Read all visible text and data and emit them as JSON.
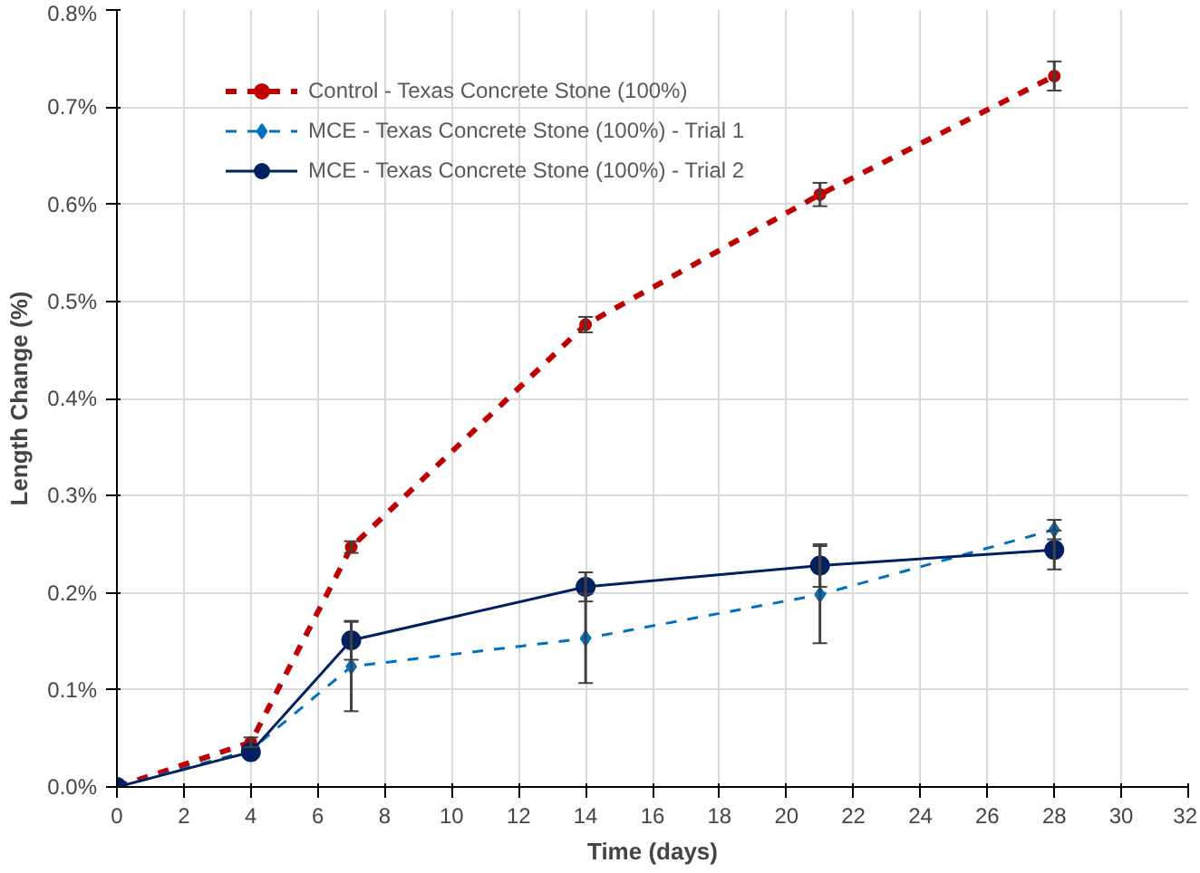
{
  "chart_data": {
    "type": "line",
    "xlabel": "Time (days)",
    "ylabel": "Length Change (%)",
    "x": [
      0,
      4,
      7,
      14,
      21,
      28
    ],
    "series": [
      {
        "name": "Control - Texas Concrete Stone (100%)",
        "color": "#c00000",
        "values": [
          0,
          0.046,
          0.247,
          0.476,
          0.61,
          0.732
        ],
        "errors": [
          null,
          0.005,
          0.006,
          0.008,
          0.012,
          0.015
        ],
        "line_style": "dashed",
        "marker": "circle"
      },
      {
        "name": "MCE - Texas Concrete Stone (100%) - Trial 1",
        "color": "#0070c0",
        "values": [
          0,
          0.038,
          0.124,
          0.153,
          0.198,
          0.265
        ],
        "errors": [
          null,
          null,
          0.046,
          0.046,
          0.05,
          0.01
        ],
        "line_style": "dashed",
        "marker": "diamond"
      },
      {
        "name": "MCE - Texas Concrete Stone (100%) - Trial 2",
        "color": "#002060",
        "values": [
          0,
          0.036,
          0.151,
          0.206,
          0.228,
          0.244
        ],
        "errors": [
          null,
          null,
          0.02,
          0.015,
          0.022,
          0.02
        ],
        "line_style": "solid",
        "marker": "circle"
      }
    ],
    "xlim": [
      0,
      32
    ],
    "xticks": [
      0,
      2,
      4,
      6,
      8,
      10,
      12,
      14,
      16,
      18,
      20,
      22,
      24,
      26,
      28,
      30,
      32
    ],
    "ylim": [
      0,
      0.8
    ],
    "yticks": [
      {
        "value": 0,
        "label": "0.0%"
      },
      {
        "value": 0.1,
        "label": "0.1%"
      },
      {
        "value": 0.2,
        "label": "0.2%"
      },
      {
        "value": 0.3,
        "label": "0.3%"
      },
      {
        "value": 0.4,
        "label": "0.4%"
      },
      {
        "value": 0.5,
        "label": "0.5%"
      },
      {
        "value": 0.6,
        "label": "0.6%"
      },
      {
        "value": 0.7,
        "label": "0.7%"
      },
      {
        "value": 0.8,
        "label": "0.8%"
      }
    ],
    "grid": true,
    "legend": "top left"
  }
}
